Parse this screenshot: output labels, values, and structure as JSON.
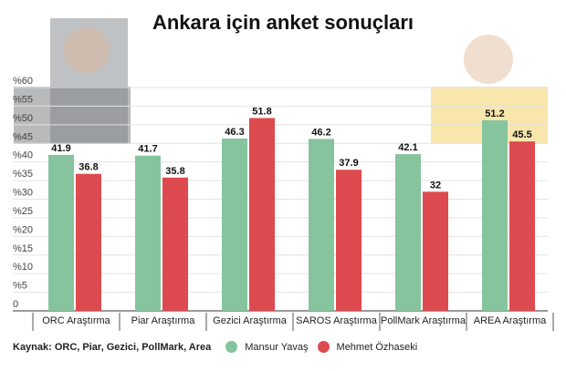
{
  "chart_data": {
    "type": "bar",
    "title": "Ankara için anket sonuçları",
    "categories": [
      "ORC Araştırma",
      "Piar Araştırma",
      "Gezici Araştırma",
      "SAROS Araştırma",
      "PollMark Araştırma",
      "AREA Araştırma"
    ],
    "series": [
      {
        "name": "Mansur Yavaş",
        "color": "#86c49e",
        "values": [
          41.9,
          41.7,
          46.3,
          46.2,
          42.1,
          51.2
        ]
      },
      {
        "name": "Mehmet Özhaseki",
        "color": "#dd4a4f",
        "values": [
          36.8,
          35.8,
          51.8,
          37.9,
          32,
          45.5
        ]
      }
    ],
    "yticks": [
      "0",
      "%5",
      "%10",
      "%15",
      "%20",
      "%25",
      "%30",
      "%35",
      "%40",
      "%45",
      "%50",
      "%55",
      "%60"
    ],
    "ylim": [
      0,
      60
    ],
    "grid": true,
    "legend": "bottom",
    "source": "Kaynak: ORC, Piar, Gezici, PollMark, Area"
  }
}
